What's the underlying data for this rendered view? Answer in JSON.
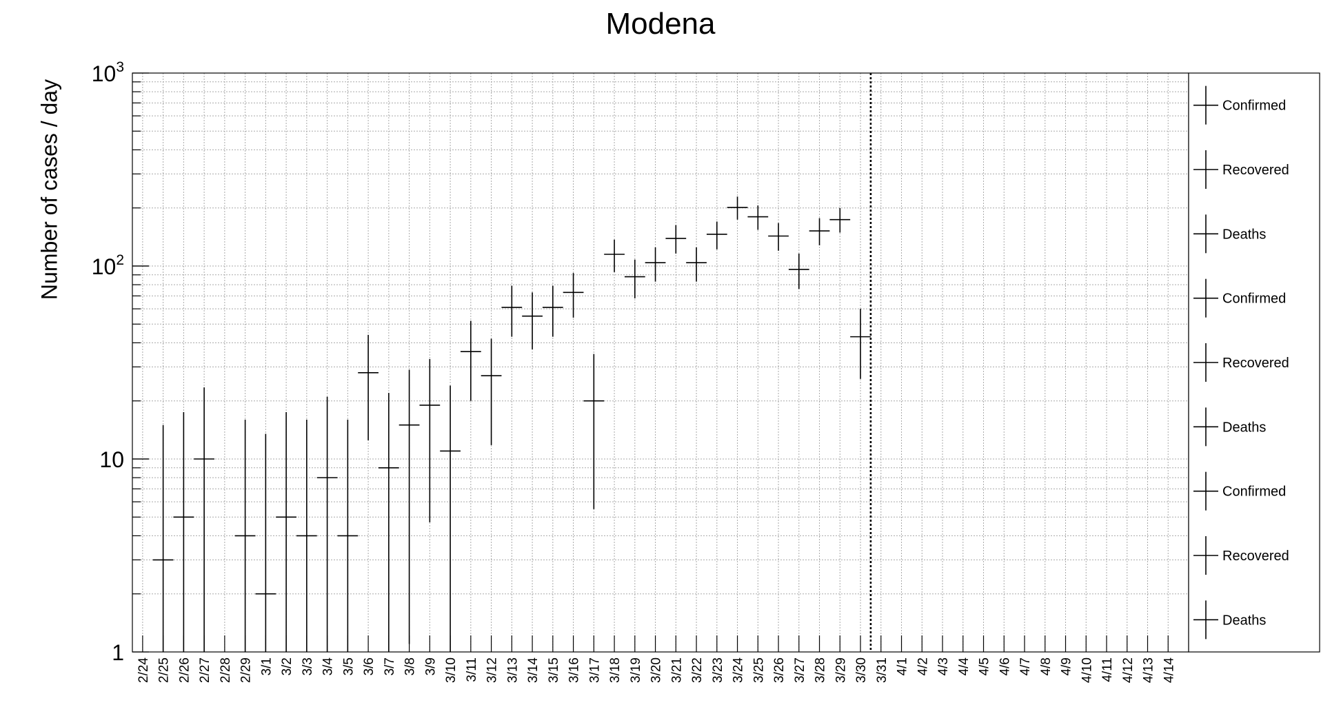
{
  "chart_data": {
    "type": "scatter",
    "title": "Modena",
    "ylabel": "Number of cases / day",
    "xlabel": "",
    "y_scale": "log",
    "ylim": [
      1,
      1000
    ],
    "y_ticks": [
      {
        "value": 1,
        "label": "1",
        "sup": ""
      },
      {
        "value": 10,
        "label": "10",
        "sup": ""
      },
      {
        "value": 100,
        "label": "10",
        "sup": "2"
      },
      {
        "value": 1000,
        "label": "10",
        "sup": "3"
      }
    ],
    "grid": true,
    "x_categories": [
      "2/24",
      "2/25",
      "2/26",
      "2/27",
      "2/28",
      "2/29",
      "3/1",
      "3/2",
      "3/3",
      "3/4",
      "3/5",
      "3/6",
      "3/7",
      "3/8",
      "3/9",
      "3/10",
      "3/11",
      "3/12",
      "3/13",
      "3/14",
      "3/15",
      "3/16",
      "3/17",
      "3/18",
      "3/19",
      "3/20",
      "3/21",
      "3/22",
      "3/23",
      "3/24",
      "3/25",
      "3/26",
      "3/27",
      "3/28",
      "3/29",
      "3/30",
      "3/31",
      "4/1",
      "4/2",
      "4/3",
      "4/4",
      "4/5",
      "4/6",
      "4/7",
      "4/8",
      "4/9",
      "4/10",
      "4/11",
      "4/12",
      "4/13",
      "4/14"
    ],
    "vertical_marker_after": "3/30",
    "points": [
      {
        "x": "2/25",
        "y": 3,
        "ylo": 1,
        "yhi": 15
      },
      {
        "x": "2/26",
        "y": 5,
        "ylo": 1,
        "yhi": 17.5
      },
      {
        "x": "2/27",
        "y": 10,
        "ylo": 1,
        "yhi": 23.5
      },
      {
        "x": "2/29",
        "y": 4,
        "ylo": 1,
        "yhi": 16
      },
      {
        "x": "3/1",
        "y": 2,
        "ylo": 1,
        "yhi": 13.5
      },
      {
        "x": "3/2",
        "y": 5,
        "ylo": 1,
        "yhi": 17.5
      },
      {
        "x": "3/3",
        "y": 4,
        "ylo": 1,
        "yhi": 16
      },
      {
        "x": "3/4",
        "y": 8,
        "ylo": 1,
        "yhi": 21
      },
      {
        "x": "3/5",
        "y": 4,
        "ylo": 1,
        "yhi": 16
      },
      {
        "x": "3/6",
        "y": 28,
        "ylo": 12.5,
        "yhi": 44
      },
      {
        "x": "3/7",
        "y": 9,
        "ylo": 1,
        "yhi": 22
      },
      {
        "x": "3/8",
        "y": 15,
        "ylo": 1.1,
        "yhi": 29
      },
      {
        "x": "3/9",
        "y": 19,
        "ylo": 4.7,
        "yhi": 33
      },
      {
        "x": "3/10",
        "y": 11,
        "ylo": 1,
        "yhi": 24
      },
      {
        "x": "3/11",
        "y": 36,
        "ylo": 20,
        "yhi": 52
      },
      {
        "x": "3/12",
        "y": 27,
        "ylo": 11.8,
        "yhi": 42
      },
      {
        "x": "3/13",
        "y": 61,
        "ylo": 43,
        "yhi": 79
      },
      {
        "x": "3/14",
        "y": 55,
        "ylo": 37,
        "yhi": 73
      },
      {
        "x": "3/15",
        "y": 61,
        "ylo": 43,
        "yhi": 79
      },
      {
        "x": "3/16",
        "y": 73,
        "ylo": 54,
        "yhi": 92
      },
      {
        "x": "3/17",
        "y": 20,
        "ylo": 5.5,
        "yhi": 35
      },
      {
        "x": "3/18",
        "y": 115,
        "ylo": 93,
        "yhi": 137
      },
      {
        "x": "3/19",
        "y": 88,
        "ylo": 68,
        "yhi": 108
      },
      {
        "x": "3/20",
        "y": 104,
        "ylo": 83,
        "yhi": 125
      },
      {
        "x": "3/21",
        "y": 139,
        "ylo": 116,
        "yhi": 163
      },
      {
        "x": "3/22",
        "y": 104,
        "ylo": 83,
        "yhi": 125
      },
      {
        "x": "3/23",
        "y": 146,
        "ylo": 122,
        "yhi": 170
      },
      {
        "x": "3/24",
        "y": 201,
        "ylo": 174,
        "yhi": 229
      },
      {
        "x": "3/25",
        "y": 180,
        "ylo": 154,
        "yhi": 206
      },
      {
        "x": "3/26",
        "y": 143,
        "ylo": 120,
        "yhi": 167
      },
      {
        "x": "3/27",
        "y": 96,
        "ylo": 76,
        "yhi": 116
      },
      {
        "x": "3/28",
        "y": 152,
        "ylo": 128,
        "yhi": 177
      },
      {
        "x": "3/29",
        "y": 174,
        "ylo": 149,
        "yhi": 200
      },
      {
        "x": "3/30",
        "y": 43,
        "ylo": 26,
        "yhi": 60
      }
    ],
    "legend": {
      "placement": "right",
      "entries": [
        "Confirmed",
        "Recovered",
        "Deaths",
        "Confirmed",
        "Recovered",
        "Deaths",
        "Confirmed",
        "Recovered",
        "Deaths"
      ]
    }
  }
}
